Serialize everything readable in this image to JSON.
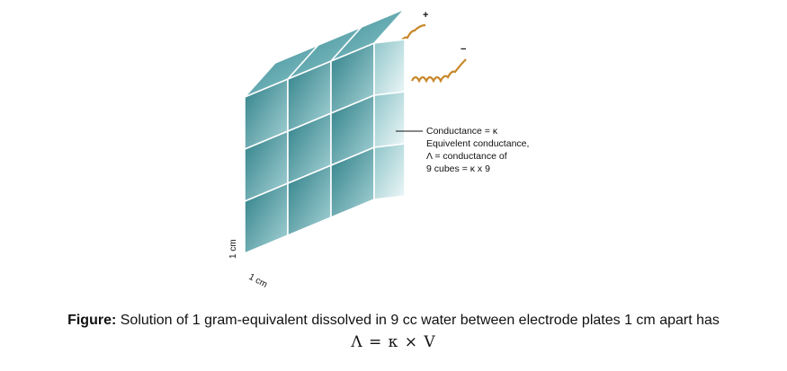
{
  "labels": {
    "plus": "+",
    "minus": "−",
    "height": "1 cm",
    "depth": "1 cm"
  },
  "annotation": [
    "Conductance = κ",
    "Equivelent conductance,",
    "Λ = conductance of",
    "9 cubes = κ x 9"
  ],
  "caption": {
    "prefix": "Figure:",
    "text": "Solution of 1 gram-equivalent dissolved in 9 cc water between electrode plates 1 cm apart has",
    "formula": "Λ = κ × V"
  },
  "colors": {
    "front_top": "#2e7f87",
    "front_bottom": "#a8d4d8",
    "side_top": "#8ec5c9",
    "side_bottom": "#e6f3f4",
    "top_face": "#5aa6ad",
    "edge": "#ffffff",
    "wire": "#c8872a"
  }
}
